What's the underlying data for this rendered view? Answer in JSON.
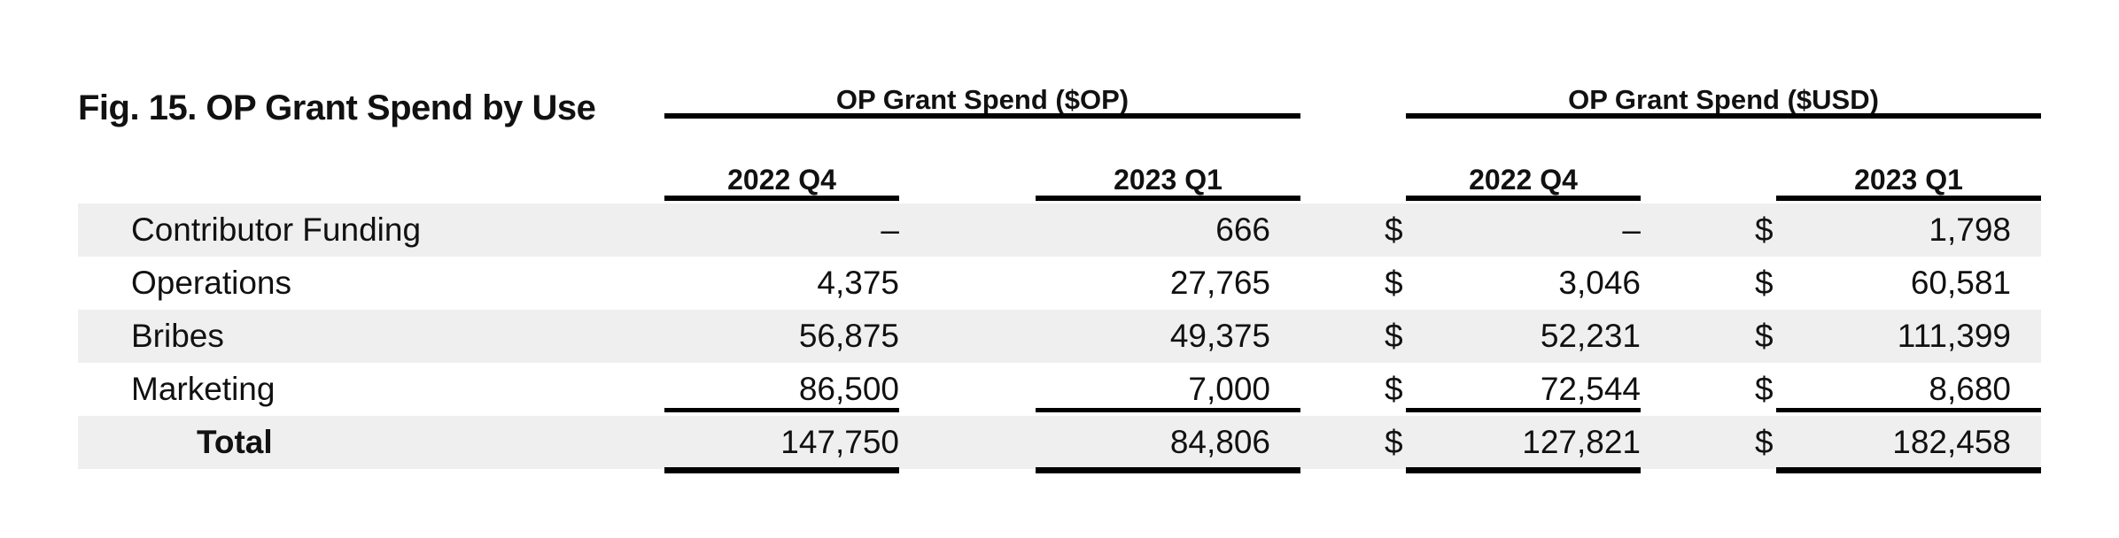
{
  "title": "Fig. 15. OP Grant Spend by Use",
  "groups": [
    {
      "label": "OP Grant Spend ($OP)"
    },
    {
      "label": "OP Grant Spend ($USD)"
    }
  ],
  "columns": [
    "2022 Q4",
    "2023 Q1",
    "2022 Q4",
    "2023 Q1"
  ],
  "currency_symbol": "$",
  "rows": [
    {
      "label": "Contributor Funding",
      "op_2022q4": "–",
      "op_2023q1": "666",
      "usd_2022q4": "–",
      "usd_2023q1": "1,798"
    },
    {
      "label": "Operations",
      "op_2022q4": "4,375",
      "op_2023q1": "27,765",
      "usd_2022q4": "3,046",
      "usd_2023q1": "60,581"
    },
    {
      "label": "Bribes",
      "op_2022q4": "56,875",
      "op_2023q1": "49,375",
      "usd_2022q4": "52,231",
      "usd_2023q1": "111,399"
    },
    {
      "label": "Marketing",
      "op_2022q4": "86,500",
      "op_2023q1": "7,000",
      "usd_2022q4": "72,544",
      "usd_2023q1": "8,680"
    }
  ],
  "total": {
    "label": "Total",
    "op_2022q4": "147,750",
    "op_2023q1": "84,806",
    "usd_2022q4": "127,821",
    "usd_2023q1": "182,458"
  },
  "colors": {
    "band": "#efefef",
    "rule": "#000000",
    "text": "#111111"
  }
}
